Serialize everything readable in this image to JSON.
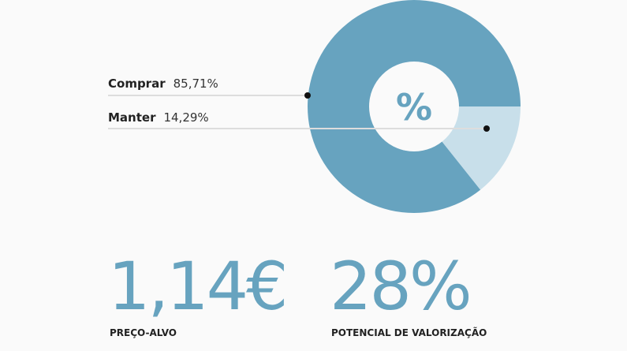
{
  "chart_data": {
    "type": "pie",
    "donut": true,
    "center_label": "%",
    "categories": [
      "Comprar",
      "Manter"
    ],
    "values": [
      85.71,
      14.29
    ],
    "value_labels": [
      "85,71%",
      "14,29%"
    ],
    "colors": [
      "#67a3bf",
      "#c8dfea"
    ]
  },
  "stats": [
    {
      "value": "1,14€",
      "label": "PREÇO-ALVO"
    },
    {
      "value": "28%",
      "label": "POTENCIAL DE VALORIZAÇÃO"
    }
  ]
}
